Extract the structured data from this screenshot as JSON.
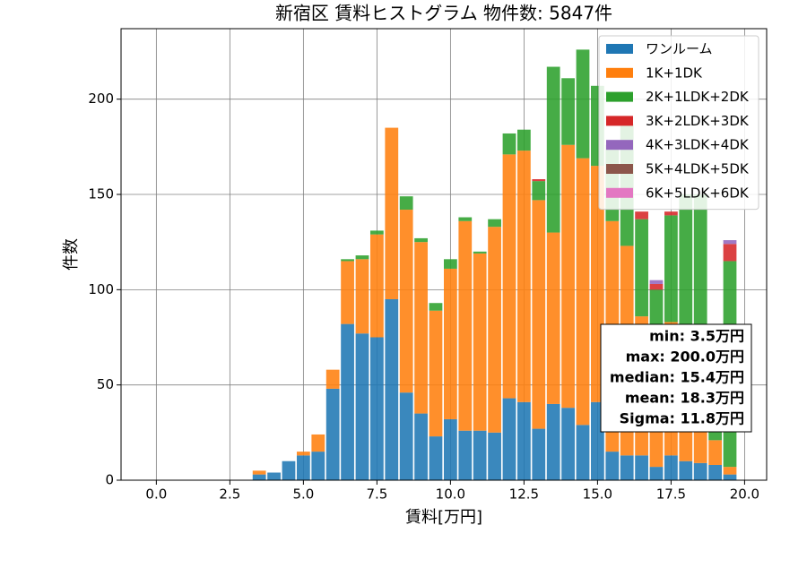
{
  "chart_data": {
    "type": "stacked_histogram",
    "title": "新宿区 賃料ヒストグラム  物件数: 5847件",
    "x_label": "賃料[万円]",
    "y_label": "件数",
    "bins": [
      3.25,
      3.75,
      4.25,
      4.75,
      5.25,
      5.75,
      6.25,
      6.75,
      7.25,
      7.75,
      8.25,
      8.75,
      9.25,
      9.75,
      10.25,
      10.75,
      11.25,
      11.75,
      12.25,
      12.75,
      13.25,
      13.75,
      14.25,
      14.75,
      15.25,
      15.75,
      16.25,
      16.75,
      17.25,
      17.75,
      18.25,
      18.75,
      19.25,
      19.75
    ],
    "series": [
      {
        "name": "ワンルーム",
        "color": "#1f77b4",
        "values": [
          3,
          4,
          10,
          13,
          15,
          48,
          82,
          77,
          75,
          95,
          46,
          35,
          23,
          32,
          26,
          26,
          25,
          43,
          41,
          27,
          40,
          38,
          29,
          41,
          15,
          13,
          13,
          7,
          13,
          10,
          9,
          8,
          3
        ]
      },
      {
        "name": "1K+1DK",
        "color": "#ff7f0e",
        "values": [
          2,
          0,
          0,
          2,
          9,
          10,
          33,
          39,
          54,
          90,
          96,
          90,
          66,
          79,
          110,
          93,
          108,
          128,
          132,
          120,
          90,
          138,
          140,
          124,
          121,
          110,
          73,
          60,
          70,
          60,
          50,
          13,
          4
        ]
      },
      {
        "name": "2K+1LDK+2DK",
        "color": "#2ca02c",
        "values": [
          0,
          0,
          0,
          0,
          0,
          0,
          1,
          2,
          2,
          0,
          7,
          2,
          4,
          5,
          2,
          1,
          4,
          11,
          11,
          10,
          87,
          35,
          57,
          42,
          40,
          64,
          51,
          33,
          56,
          80,
          91,
          55,
          108
        ]
      },
      {
        "name": "3K+2LDK+3DK",
        "color": "#d62728",
        "values": [
          0,
          0,
          0,
          0,
          0,
          0,
          0,
          0,
          0,
          0,
          0,
          0,
          0,
          0,
          0,
          0,
          0,
          0,
          0,
          1,
          0,
          0,
          0,
          0,
          0,
          0,
          4,
          3,
          2,
          0,
          0,
          0,
          9
        ]
      },
      {
        "name": "4K+3LDK+4DK",
        "color": "#9467bd",
        "values": [
          0,
          0,
          0,
          0,
          0,
          0,
          0,
          0,
          0,
          0,
          0,
          0,
          0,
          0,
          0,
          0,
          0,
          0,
          0,
          0,
          0,
          0,
          0,
          0,
          0,
          0,
          0,
          2,
          0,
          0,
          0,
          0,
          2
        ]
      },
      {
        "name": "5K+4LDK+5DK",
        "color": "#8c564b",
        "values": [
          0,
          0,
          0,
          0,
          0,
          0,
          0,
          0,
          0,
          0,
          0,
          0,
          0,
          0,
          0,
          0,
          0,
          0,
          0,
          0,
          0,
          0,
          0,
          0,
          0,
          0,
          0,
          0,
          0,
          0,
          0,
          0,
          0
        ]
      },
      {
        "name": "6K+5LDK+6DK",
        "color": "#e377c2",
        "values": [
          0,
          0,
          0,
          0,
          0,
          0,
          0,
          0,
          0,
          0,
          0,
          0,
          0,
          0,
          0,
          0,
          0,
          0,
          0,
          0,
          0,
          0,
          0,
          0,
          0,
          0,
          0,
          0,
          0,
          0,
          0,
          0,
          0
        ]
      }
    ],
    "xlim": [
      -1.2,
      20.75
    ],
    "ylim": [
      0,
      237
    ],
    "xticks": [
      {
        "value": 0,
        "label": "0.0"
      },
      {
        "value": 2.5,
        "label": "2.5"
      },
      {
        "value": 5,
        "label": "5.0"
      },
      {
        "value": 7.5,
        "label": "7.5"
      },
      {
        "value": 10,
        "label": "10.0"
      },
      {
        "value": 12.5,
        "label": "12.5"
      },
      {
        "value": 15,
        "label": "15.0"
      },
      {
        "value": 17.5,
        "label": "17.5"
      },
      {
        "value": 20,
        "label": "20.0"
      }
    ],
    "yticks": [
      0,
      50,
      100,
      150,
      200
    ],
    "grid": true,
    "legend": "upper right",
    "stats": [
      "min: 3.5万円",
      "max: 200.0万円",
      "median: 15.4万円",
      "mean: 18.3万円",
      "Sigma: 11.8万円"
    ]
  }
}
